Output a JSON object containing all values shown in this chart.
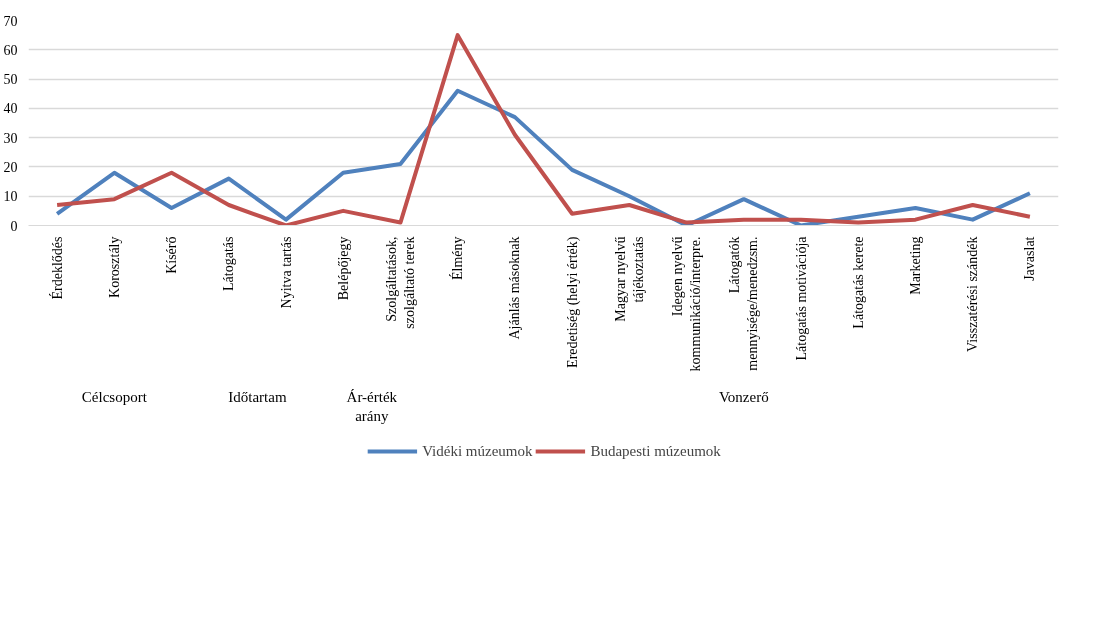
{
  "chart_data": {
    "type": "line",
    "categories": [
      "Érdeklődés",
      "Korosztály",
      "Kísérő",
      "Látogatás",
      "Nyitva tartás",
      "Belépőjegy",
      "Szolgáltatások, szolgáltató terek",
      "Élmény",
      "Ajánlás másoknak",
      "Eredetiség (helyi érték)",
      "Magyar nyelvű tájékoztatás",
      "Idegen nyelvű kommunikáció/interpre.",
      "Látogatók mennyisége/menedzsm.",
      "Látogatás motivációja",
      "Látogatás kerete",
      "Marketing",
      "Visszatérési szándék",
      "Javaslat"
    ],
    "series": [
      {
        "name": "Vidéki múzeumok",
        "color": "#4f81bd",
        "values": [
          4,
          18,
          6,
          16,
          2,
          18,
          21,
          46,
          37,
          19,
          10,
          0,
          9,
          0,
          3,
          6,
          2,
          11
        ]
      },
      {
        "name": "Budapesti múzeumok",
        "color": "#c0504d",
        "values": [
          7,
          9,
          18,
          7,
          0,
          5,
          1,
          65,
          31,
          4,
          7,
          1,
          2,
          2,
          1,
          2,
          7,
          3
        ]
      }
    ],
    "annotations": [
      "Célcsoport",
      "Időtartam",
      "Ár-érték\narány",
      "Vonzerő"
    ],
    "ylim": [
      0,
      70
    ],
    "yticks": [
      0,
      10,
      20,
      30,
      40,
      50,
      60,
      70
    ],
    "grid": "y",
    "legend": "bottom",
    "marker": "none",
    "line_style": "solid"
  }
}
